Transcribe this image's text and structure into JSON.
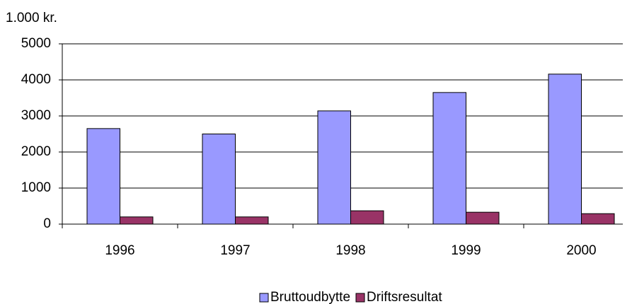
{
  "chart_data": {
    "type": "bar",
    "y_axis_label": "1.000 kr.",
    "categories": [
      "1996",
      "1997",
      "1998",
      "1999",
      "2000"
    ],
    "series": [
      {
        "name": "Bruttoudbytte",
        "color": "#9999ff",
        "values": [
          2650,
          2500,
          3140,
          3650,
          4160
        ]
      },
      {
        "name": "Driftsresultat",
        "color": "#993366",
        "values": [
          200,
          200,
          370,
          330,
          290
        ]
      }
    ],
    "ylim": [
      0,
      5000
    ],
    "yticks": [
      0,
      1000,
      2000,
      3000,
      4000,
      5000
    ],
    "grid": true,
    "legend": "bottom"
  }
}
